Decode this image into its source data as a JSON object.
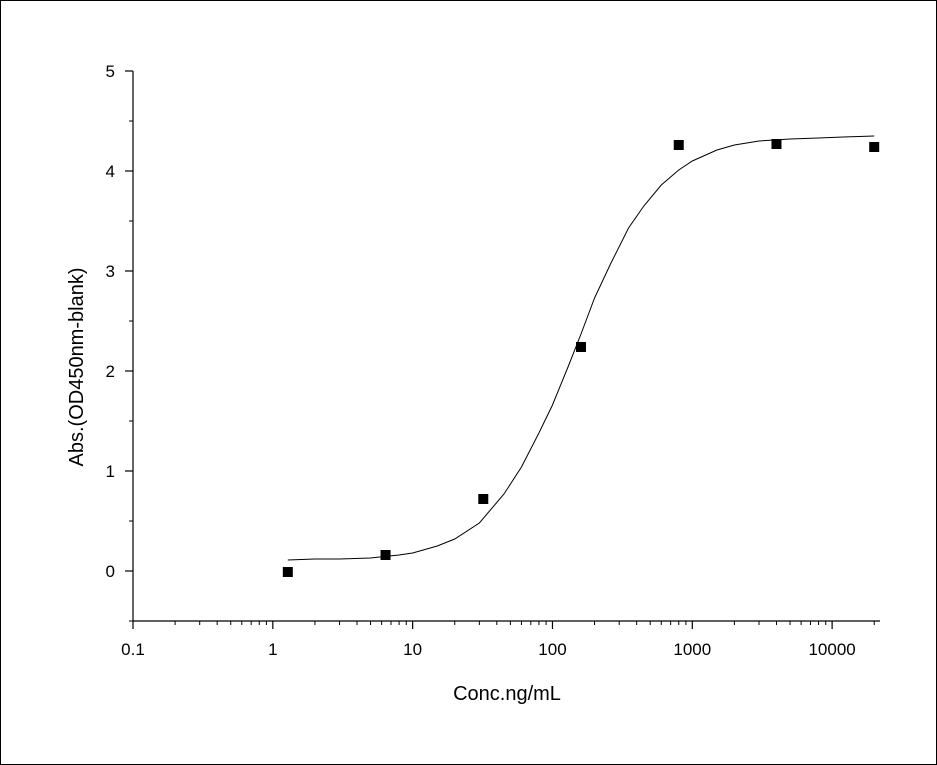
{
  "chart_data": {
    "type": "scatter",
    "title": "",
    "xlabel": "Conc.ng/mL",
    "ylabel": "Abs.(OD450nm-blank)",
    "x_scale": "log",
    "xlim": [
      0.1,
      22000
    ],
    "ylim": [
      -0.5,
      5
    ],
    "grid": false,
    "legend": "none",
    "x_ticks": [
      0.1,
      1,
      10,
      100,
      1000,
      10000
    ],
    "x_tick_labels": [
      "0.1",
      "1",
      "10",
      "100",
      "1000",
      "10000"
    ],
    "y_ticks": [
      0,
      1,
      2,
      3,
      4,
      5
    ],
    "y_tick_labels": [
      "0",
      "1",
      "2",
      "3",
      "4",
      "5"
    ],
    "series": [
      {
        "kind": "points",
        "marker": "square",
        "color": "#000000",
        "x": [
          1.28,
          6.4,
          32,
          160,
          800,
          4000,
          20000
        ],
        "y": [
          -0.01,
          0.16,
          0.72,
          2.24,
          4.26,
          4.27,
          4.24
        ]
      },
      {
        "kind": "fit-line",
        "color": "#000000",
        "x": [
          1.28,
          2,
          3,
          5,
          8,
          10,
          15,
          20,
          30,
          45,
          60,
          80,
          100,
          130,
          160,
          200,
          260,
          350,
          450,
          600,
          800,
          1000,
          1500,
          2000,
          3000,
          5000,
          8000,
          12000,
          20000
        ],
        "y": [
          0.11,
          0.12,
          0.12,
          0.13,
          0.16,
          0.18,
          0.25,
          0.32,
          0.48,
          0.77,
          1.04,
          1.38,
          1.66,
          2.05,
          2.37,
          2.73,
          3.07,
          3.43,
          3.65,
          3.86,
          4.01,
          4.1,
          4.21,
          4.26,
          4.3,
          4.32,
          4.33,
          4.34,
          4.35
        ]
      }
    ]
  }
}
